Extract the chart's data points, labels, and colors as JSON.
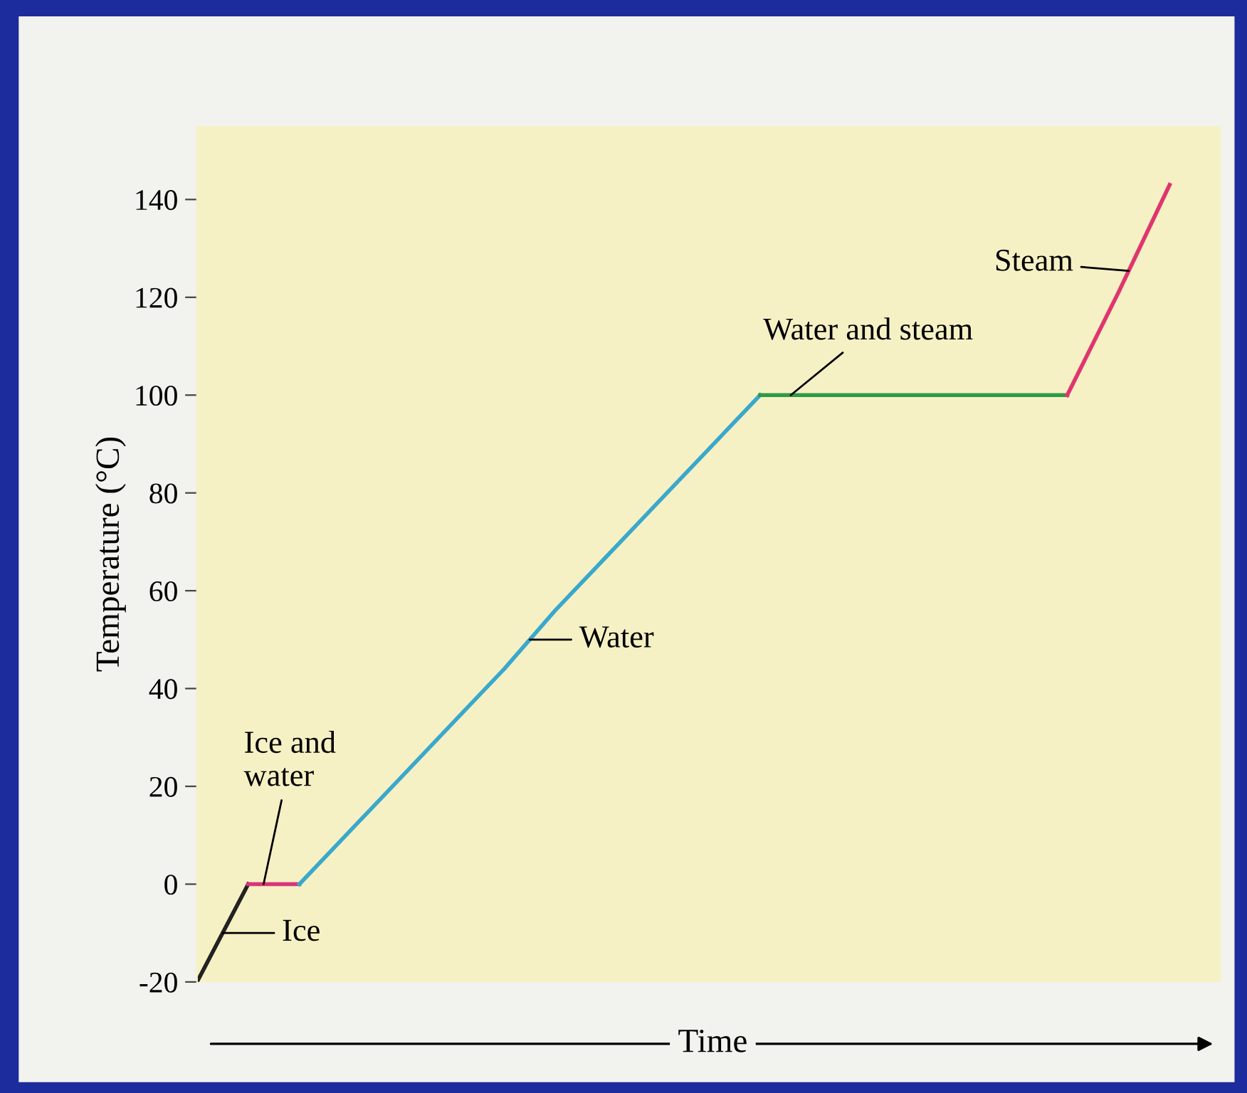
{
  "chart_data": {
    "type": "line",
    "xlabel": "Time",
    "ylabel": "Temperature (°C)",
    "categories": [
      null,
      null,
      null,
      null,
      null,
      null,
      null,
      null,
      null,
      null,
      null,
      null,
      null,
      null,
      null,
      null,
      null,
      null,
      null,
      null
    ],
    "series": [
      {
        "color": "#222222",
        "values": [
          -20,
          0,
          null,
          null,
          null,
          null,
          null,
          null,
          null,
          null,
          null,
          null,
          null,
          null,
          null,
          null,
          null,
          null,
          null,
          null
        ]
      },
      {
        "color": "#d8357a",
        "values": [
          null,
          0,
          0,
          null,
          null,
          null,
          null,
          null,
          null,
          null,
          null,
          null,
          null,
          null,
          null,
          null,
          null,
          null,
          null,
          null
        ]
      },
      {
        "color": "#3aa8cc",
        "values": [
          null,
          null,
          0,
          11,
          22,
          33,
          44,
          56,
          67,
          78,
          89,
          100,
          null,
          null,
          null,
          null,
          null,
          null,
          null,
          null
        ]
      },
      {
        "color": "#2f9a45",
        "values": [
          null,
          null,
          null,
          null,
          null,
          null,
          null,
          null,
          null,
          null,
          null,
          100,
          100,
          100,
          100,
          100,
          100,
          100,
          null,
          null
        ]
      },
      {
        "color": "#e0356f",
        "values": [
          null,
          null,
          null,
          null,
          null,
          null,
          null,
          null,
          null,
          null,
          null,
          null,
          null,
          null,
          null,
          null,
          null,
          100,
          121,
          143
        ]
      }
    ],
    "annotations": [
      "Ice",
      "Ice and\nwater",
      "Water",
      "Water and steam",
      "Steam"
    ],
    "ylim": [
      -20,
      155
    ],
    "yticks": [
      -20,
      0,
      20,
      40,
      60,
      80,
      100,
      120,
      140
    ],
    "tick_labels": "y",
    "grid": false,
    "marker": "none",
    "line_style": "solid"
  }
}
